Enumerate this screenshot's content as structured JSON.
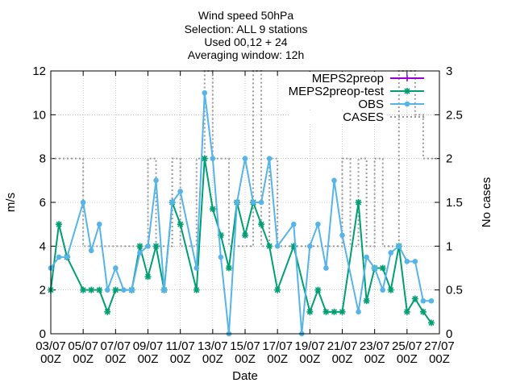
{
  "chart_data": {
    "type": "line",
    "title_lines": [
      "Wind speed 50hPa",
      "Selection: ALL      9 stations",
      "Used 00,12 + 24",
      "Averaging window: 12h"
    ],
    "xlabel": "Date",
    "ylabel": "m/s",
    "y2label": "No cases",
    "x_tick_labels": [
      {
        "date": "03/07",
        "hour": "00Z"
      },
      {
        "date": "05/07",
        "hour": "00Z"
      },
      {
        "date": "07/07",
        "hour": "00Z"
      },
      {
        "date": "09/07",
        "hour": "00Z"
      },
      {
        "date": "11/07",
        "hour": "00Z"
      },
      {
        "date": "13/07",
        "hour": "00Z"
      },
      {
        "date": "15/07",
        "hour": "00Z"
      },
      {
        "date": "17/07",
        "hour": "00Z"
      },
      {
        "date": "19/07",
        "hour": "00Z"
      },
      {
        "date": "21/07",
        "hour": "00Z"
      },
      {
        "date": "23/07",
        "hour": "00Z"
      },
      {
        "date": "25/07",
        "hour": "00Z"
      },
      {
        "date": "27/07",
        "hour": "00Z"
      }
    ],
    "ylim": [
      0,
      12
    ],
    "yticks": [
      "0",
      "2",
      "4",
      "6",
      "8",
      "10",
      "12"
    ],
    "y2lim": [
      0,
      3
    ],
    "y2ticks": [
      "0",
      "0.5",
      "1",
      "1.5",
      "2",
      "2.5",
      "3"
    ],
    "x_unit": "days since 03/07 00Z",
    "xlim": [
      0,
      24
    ],
    "legend_position": "top-right",
    "series": [
      {
        "name": "MEPS2preop",
        "color": "#9400d3",
        "axis": "y1",
        "style": "line-plus",
        "x": [],
        "y": []
      },
      {
        "name": "MEPS2preop-test",
        "color": "#009e73",
        "axis": "y1",
        "style": "line-star",
        "x": [
          0,
          0.5,
          1,
          2,
          2.5,
          3,
          3.5,
          4,
          5,
          5.5,
          6,
          6.5,
          7,
          7.5,
          8,
          9,
          9.5,
          10,
          10.5,
          11,
          11.5,
          12,
          12.5,
          13,
          13.5,
          14,
          15,
          16,
          16.5,
          17,
          17.5,
          18,
          19,
          19.5,
          20,
          20.5,
          21,
          21.5,
          22,
          22.5,
          23,
          23.5
        ],
        "y": [
          2,
          5,
          3.5,
          2,
          2,
          2,
          1,
          2,
          2,
          4,
          2.6,
          4,
          2,
          6,
          5,
          2,
          8,
          5.7,
          4.5,
          3,
          6,
          4.5,
          6,
          5,
          4,
          2,
          4,
          1,
          2,
          1,
          1,
          1,
          6,
          1.5,
          3,
          3,
          2,
          4,
          1,
          1.6,
          1,
          0.5
        ]
      },
      {
        "name": "OBS",
        "color": "#56b4e9",
        "axis": "y1",
        "style": "line-circle",
        "x": [
          0,
          0.5,
          1,
          2,
          2.5,
          3,
          3.5,
          4,
          4.5,
          5,
          5.5,
          6,
          6.5,
          7,
          7.5,
          8,
          9,
          9.5,
          10,
          10.5,
          11,
          11.5,
          12,
          12.5,
          13,
          13.5,
          14,
          15,
          15.5,
          16,
          16.5,
          17,
          17.5,
          18,
          19,
          19.5,
          20,
          20.5,
          21,
          21.5,
          22,
          22.5,
          23,
          23.5
        ],
        "y": [
          3,
          3.5,
          3.5,
          6,
          3.8,
          5,
          2,
          3,
          2,
          2,
          3.7,
          4,
          7,
          2,
          6,
          6.5,
          3,
          11,
          8,
          3.5,
          0,
          6,
          8,
          6,
          6,
          8,
          4,
          5,
          0,
          4,
          5,
          3,
          7,
          4.5,
          1,
          3.5,
          3,
          2,
          3.7,
          4,
          3.3,
          3.3,
          1.5,
          1.5
        ]
      },
      {
        "name": "CASES",
        "color": "#999999",
        "axis": "y2",
        "style": "dotted-step",
        "x": [
          0,
          1,
          2,
          3,
          4,
          5,
          5.5,
          6,
          6.5,
          7,
          7.5,
          8,
          8.5,
          9,
          9.5,
          10,
          11,
          11.5,
          12,
          12.5,
          13,
          13.5,
          14,
          14.5,
          15,
          16,
          16.5,
          17,
          17.5,
          18,
          18.5,
          19,
          19.5,
          20,
          20.5,
          21,
          21.5,
          22,
          22.5,
          23,
          23.5
        ],
        "y": [
          2,
          2,
          1,
          1,
          1,
          1,
          1,
          2,
          1,
          1,
          2,
          1,
          1,
          2,
          3,
          2,
          1,
          1,
          1,
          3,
          1,
          2,
          1,
          1,
          1,
          1,
          1,
          1,
          1,
          2,
          1,
          2,
          1,
          2,
          1,
          1,
          3,
          3,
          2.5,
          2,
          2
        ]
      }
    ]
  }
}
